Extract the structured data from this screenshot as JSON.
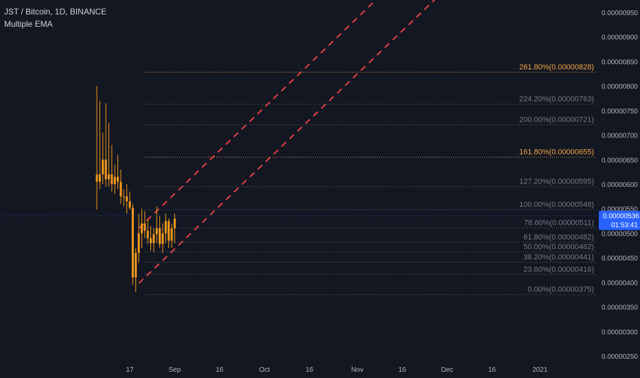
{
  "header": {
    "symbol": "JST / Bitcoin, 1D, BINANCE",
    "indicator": "Multiple EMA"
  },
  "price_axis": {
    "ticks": [
      {
        "value": 950,
        "label": "0.00000950"
      },
      {
        "value": 900,
        "label": "0.00000900"
      },
      {
        "value": 850,
        "label": "0.00000850"
      },
      {
        "value": 800,
        "label": "0.00000800"
      },
      {
        "value": 750,
        "label": "0.00000750"
      },
      {
        "value": 700,
        "label": "0.00000700"
      },
      {
        "value": 650,
        "label": "0.00000650"
      },
      {
        "value": 600,
        "label": "0.00000600"
      },
      {
        "value": 550,
        "label": "0.00000550"
      },
      {
        "value": 500,
        "label": "0.00000500"
      },
      {
        "value": 450,
        "label": "0.00000450"
      },
      {
        "value": 400,
        "label": "0.00000400"
      },
      {
        "value": 350,
        "label": "0.00000350"
      },
      {
        "value": 300,
        "label": "0.00000300"
      },
      {
        "value": 250,
        "label": "0.00000250"
      }
    ],
    "current_price": {
      "value": 536,
      "label": "0.00000536",
      "countdown": "01:53:41"
    }
  },
  "time_axis": {
    "ticks": [
      {
        "day": 17,
        "label": "17"
      },
      {
        "day": 32,
        "label": "Sep"
      },
      {
        "day": 47,
        "label": "16"
      },
      {
        "day": 62,
        "label": "Oct"
      },
      {
        "day": 77,
        "label": "16"
      },
      {
        "day": 93,
        "label": "Nov"
      },
      {
        "day": 108,
        "label": "16"
      },
      {
        "day": 123,
        "label": "Dec"
      },
      {
        "day": 138,
        "label": "16"
      },
      {
        "day": 154,
        "label": "2021"
      }
    ]
  },
  "fib_levels": [
    {
      "label": "261.80%(0.00000828)",
      "price": 828,
      "highlight": true
    },
    {
      "label": "224.20%(0.00000763)",
      "price": 763,
      "highlight": false
    },
    {
      "label": "200.00%(0.00000721)",
      "price": 721,
      "highlight": false
    },
    {
      "label": "161.80%(0.00000655)",
      "price": 655,
      "highlight": true
    },
    {
      "label": "127.20%(0.00000595)",
      "price": 595,
      "highlight": false
    },
    {
      "label": "100.00%(0.00000548)",
      "price": 548,
      "highlight": false
    },
    {
      "label": "78.60%(0.00000511)",
      "price": 511,
      "highlight": false
    },
    {
      "label": "61.80%(0.00000482)",
      "price": 482,
      "highlight": false
    },
    {
      "label": "50.00%(0.00000462)",
      "price": 462,
      "highlight": false
    },
    {
      "label": "38.20%(0.00000441)",
      "price": 441,
      "highlight": false
    },
    {
      "label": "23.60%(0.00000416)",
      "price": 416,
      "highlight": false
    },
    {
      "label": "0.00%(0.00000375)",
      "price": 375,
      "highlight": false
    }
  ],
  "trend_lines": [
    {
      "from": {
        "day": 20,
        "price": 510
      },
      "to": {
        "day": 123,
        "price": 1115
      }
    },
    {
      "from": {
        "day": 20,
        "price": 398
      },
      "to": {
        "day": 123,
        "price": 1000
      }
    }
  ],
  "candles": [
    [
      6,
      620,
      800,
      548,
      605
    ],
    [
      7,
      605,
      770,
      590,
      620
    ],
    [
      8,
      620,
      705,
      600,
      650
    ],
    [
      9,
      650,
      765,
      595,
      610
    ],
    [
      10,
      610,
      725,
      595,
      620
    ],
    [
      11,
      620,
      680,
      585,
      600
    ],
    [
      12,
      600,
      640,
      580,
      615
    ],
    [
      13,
      615,
      660,
      590,
      605
    ],
    [
      14,
      605,
      630,
      560,
      575
    ],
    [
      15,
      575,
      590,
      555,
      575
    ],
    [
      16,
      575,
      600,
      540,
      565
    ],
    [
      17,
      565,
      585,
      548,
      552
    ],
    [
      18,
      552,
      560,
      395,
      410
    ],
    [
      19,
      410,
      470,
      380,
      460
    ],
    [
      20,
      460,
      540,
      440,
      500
    ],
    [
      21,
      500,
      550,
      470,
      520
    ],
    [
      22,
      520,
      545,
      490,
      505
    ],
    [
      23,
      505,
      528,
      478,
      490
    ],
    [
      24,
      490,
      515,
      465,
      480
    ],
    [
      25,
      480,
      510,
      462,
      498
    ],
    [
      26,
      498,
      555,
      480,
      510
    ],
    [
      27,
      510,
      535,
      470,
      478
    ],
    [
      28,
      478,
      520,
      460,
      500
    ],
    [
      29,
      500,
      540,
      480,
      525
    ],
    [
      30,
      525,
      530,
      470,
      485
    ],
    [
      31,
      485,
      520,
      470,
      510
    ],
    [
      32,
      510,
      540,
      480,
      530
    ]
  ],
  "colors": {
    "background": "#131722",
    "text": "#d1d4dc",
    "axis_text": "#b2b5be",
    "fib_line": "#787b86",
    "fib_highlight": "#f5a742",
    "candle": "#f59b1c",
    "trend_line": "#e84142",
    "price_badge": "#2962ff"
  }
}
